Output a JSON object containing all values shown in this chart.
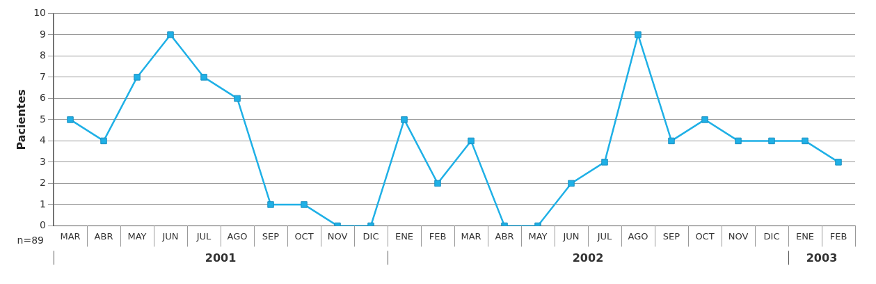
{
  "chart_data": {
    "type": "line",
    "ylabel": "Pacientes",
    "categories": [
      "MAR",
      "ABR",
      "MAY",
      "JUN",
      "JUL",
      "AGO",
      "SEP",
      "OCT",
      "NOV",
      "DIC",
      "ENE",
      "FEB",
      "MAR",
      "ABR",
      "MAY",
      "JUN",
      "JUL",
      "AGO",
      "SEP",
      "OCT",
      "NOV",
      "DIC",
      "ENE",
      "FEB"
    ],
    "series": [
      {
        "color": "#1fb0e6",
        "values": [
          5,
          4,
          7,
          9,
          7,
          6,
          1,
          1,
          0,
          0,
          5,
          2,
          4,
          0,
          0,
          2,
          3,
          9,
          4,
          5,
          4,
          4,
          4,
          3
        ]
      }
    ],
    "ylim": [
      0,
      10
    ],
    "yticks": [
      0,
      1,
      2,
      3,
      4,
      5,
      6,
      7,
      8,
      9,
      10
    ],
    "grid": "y",
    "marker": "square",
    "line_style": "solid",
    "legend": false,
    "annotations": [
      "n=89",
      "2001",
      "2002",
      "2003"
    ]
  }
}
